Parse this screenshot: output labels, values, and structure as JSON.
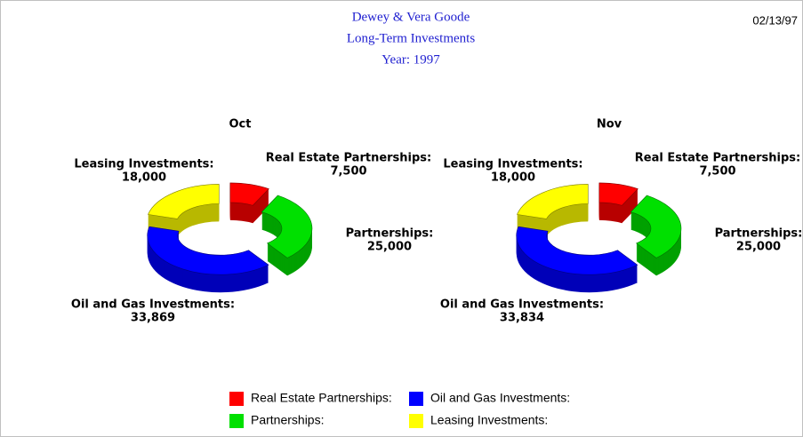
{
  "header": {
    "title": [
      "Dewey & Vera Goode",
      "Long-Term Investments",
      "Year: 1997"
    ],
    "date": "02/13/97"
  },
  "chart_data": [
    {
      "type": "doughnut",
      "title": "Oct",
      "categories": [
        "Real Estate Partnerships:",
        "Partnerships:",
        "Oil and Gas Investments:",
        "Leasing Investments:"
      ],
      "values": [
        7500,
        25000,
        33869,
        18000
      ],
      "value_labels": [
        "7,500",
        "25,000",
        "33,869",
        "18,000"
      ],
      "colors": [
        "#ff0000",
        "#00e000",
        "#0000ff",
        "#ffff00"
      ]
    },
    {
      "type": "doughnut",
      "title": "Nov",
      "categories": [
        "Real Estate Partnerships:",
        "Partnerships:",
        "Oil and Gas Investments:",
        "Leasing Investments:"
      ],
      "values": [
        7500,
        25000,
        33834,
        18000
      ],
      "value_labels": [
        "7,500",
        "25,000",
        "33,834",
        "18,000"
      ],
      "colors": [
        "#ff0000",
        "#00e000",
        "#0000ff",
        "#ffff00"
      ]
    }
  ]
}
